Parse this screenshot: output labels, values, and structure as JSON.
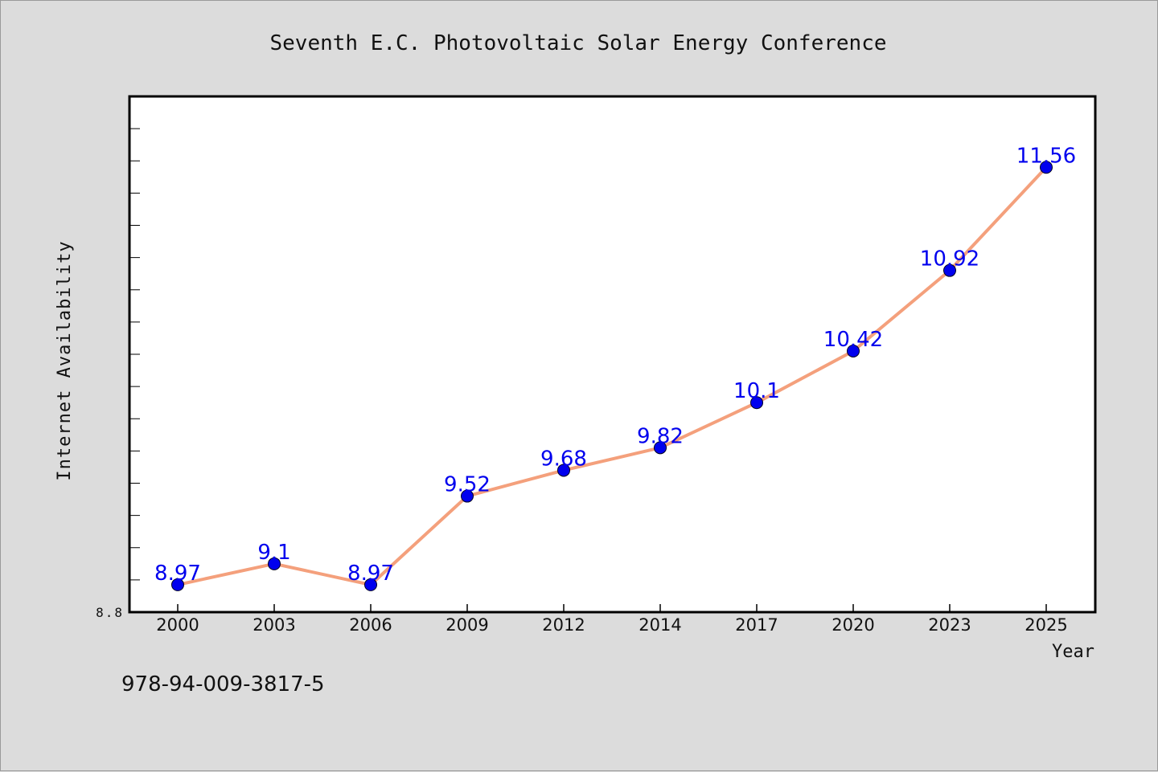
{
  "chart_data": {
    "type": "line",
    "title": "Seventh E.C. Photovoltaic Solar Energy Conference",
    "xlabel": "Year",
    "ylabel": "Internet Availability",
    "categories": [
      "2000",
      "2003",
      "2006",
      "2009",
      "2012",
      "2014",
      "2017",
      "2020",
      "2023",
      "2025"
    ],
    "series": [
      {
        "values": [
          8.97,
          9.1,
          8.97,
          9.52,
          9.68,
          9.82,
          10.1,
          10.42,
          10.92,
          11.56
        ],
        "data_labels": [
          "8.97",
          "9.1",
          "8.97",
          "9.52",
          "9.68",
          "9.82",
          "10.1",
          "10.42",
          "10.92",
          "11.56"
        ],
        "line_color": "#f4a07c",
        "marker_color": "#0000ee"
      }
    ],
    "ylim": [
      8.8,
      12.0
    ],
    "y_tick_labels": [
      "8.8"
    ],
    "grid": false,
    "label_color": "#0000ee"
  },
  "footer": {
    "isbn": "978-94-009-3817-5"
  }
}
